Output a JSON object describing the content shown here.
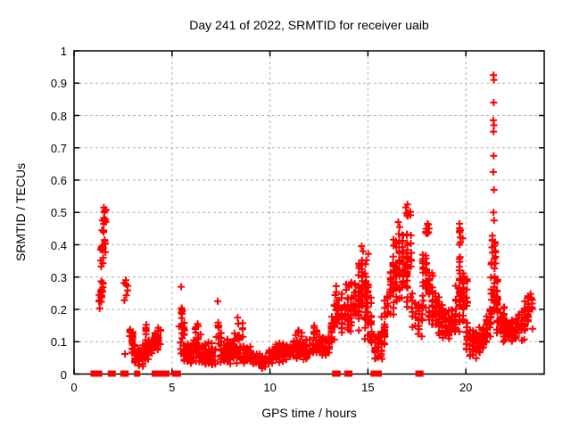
{
  "chart_data": {
    "type": "scatter",
    "title": "Day 241 of 2022, SRMTID for receiver uaib",
    "xlabel": "GPS time / hours",
    "ylabel": "SRMTID / TECUs",
    "xlim": [
      0,
      24
    ],
    "ylim": [
      0,
      1
    ],
    "xticks": {
      "values": [
        0,
        5,
        10,
        15,
        20
      ],
      "labels": [
        "0",
        "5",
        "10",
        "15",
        "20"
      ]
    },
    "yticks": {
      "values": [
        0,
        0.1,
        0.2,
        0.3,
        0.4,
        0.5,
        0.6,
        0.7,
        0.8,
        0.9,
        1
      ],
      "labels": [
        "0",
        "0.1",
        "0.2",
        "0.3",
        "0.4",
        "0.5",
        "0.6",
        "0.7",
        "0.8",
        "0.9",
        "1"
      ]
    },
    "grid": true,
    "legend": false,
    "marker": {
      "type": "plus",
      "size": 9
    },
    "series_name": "SRMTID",
    "cluster_bands_note": "each row: [hour_start, hour_end, n_points, y_min_at_start, y_max_at_start, y_min_at_end, y_max_at_end] - estimated envelope of dense plus-marker scatter",
    "clusters": [
      [
        1.3,
        1.48,
        22,
        0.17,
        0.3,
        0.22,
        0.33
      ],
      [
        1.38,
        1.58,
        16,
        0.3,
        0.42,
        0.34,
        0.47
      ],
      [
        1.44,
        1.62,
        14,
        0.42,
        0.5,
        0.44,
        0.52
      ],
      [
        2.58,
        2.72,
        7,
        0.22,
        0.31,
        0.22,
        0.31
      ],
      [
        2.85,
        3.1,
        25,
        0.08,
        0.16,
        0.04,
        0.12
      ],
      [
        3.1,
        3.5,
        45,
        0.02,
        0.1,
        0.02,
        0.09
      ],
      [
        3.5,
        3.8,
        35,
        0.02,
        0.1,
        0.04,
        0.12
      ],
      [
        3.62,
        3.75,
        5,
        0.12,
        0.17,
        0.12,
        0.17
      ],
      [
        3.8,
        4.15,
        30,
        0.04,
        0.11,
        0.06,
        0.13
      ],
      [
        4.15,
        4.42,
        25,
        0.06,
        0.17,
        0.07,
        0.14
      ],
      [
        5.38,
        5.62,
        18,
        0.1,
        0.27,
        0.08,
        0.18
      ],
      [
        5.45,
        5.95,
        40,
        0.03,
        0.1,
        0.03,
        0.1
      ],
      [
        5.95,
        6.55,
        55,
        0.03,
        0.11,
        0.03,
        0.11
      ],
      [
        6.2,
        6.45,
        8,
        0.1,
        0.16,
        0.1,
        0.16
      ],
      [
        6.55,
        7.2,
        60,
        0.02,
        0.1,
        0.02,
        0.1
      ],
      [
        7.25,
        7.5,
        14,
        0.08,
        0.23,
        0.06,
        0.16
      ],
      [
        7.5,
        8.15,
        60,
        0.03,
        0.11,
        0.03,
        0.11
      ],
      [
        8.2,
        8.6,
        12,
        0.09,
        0.17,
        0.09,
        0.17
      ],
      [
        8.15,
        9.0,
        75,
        0.03,
        0.11,
        0.02,
        0.09
      ],
      [
        9.0,
        9.6,
        55,
        0.02,
        0.08,
        0.015,
        0.06
      ],
      [
        9.6,
        10.3,
        55,
        0.015,
        0.06,
        0.03,
        0.09
      ],
      [
        10.3,
        11.2,
        85,
        0.03,
        0.1,
        0.03,
        0.1
      ],
      [
        11.3,
        11.6,
        10,
        0.08,
        0.15,
        0.08,
        0.15
      ],
      [
        11.2,
        12.2,
        90,
        0.04,
        0.11,
        0.04,
        0.11
      ],
      [
        12.25,
        12.55,
        10,
        0.09,
        0.16,
        0.09,
        0.16
      ],
      [
        12.2,
        13.0,
        75,
        0.05,
        0.12,
        0.05,
        0.12
      ],
      [
        13.0,
        13.3,
        30,
        0.07,
        0.15,
        0.1,
        0.22
      ],
      [
        13.3,
        13.5,
        12,
        0.14,
        0.27,
        0.14,
        0.27
      ],
      [
        13.5,
        14.3,
        60,
        0.1,
        0.25,
        0.12,
        0.28
      ],
      [
        13.9,
        14.15,
        8,
        0.24,
        0.31,
        0.24,
        0.31
      ],
      [
        14.35,
        14.9,
        55,
        0.12,
        0.3,
        0.15,
        0.36
      ],
      [
        14.55,
        14.85,
        8,
        0.3,
        0.375,
        0.3,
        0.375
      ],
      [
        14.85,
        15.15,
        35,
        0.08,
        0.37,
        0.08,
        0.3
      ],
      [
        15.2,
        15.7,
        35,
        0.03,
        0.15,
        0.02,
        0.12
      ],
      [
        15.7,
        16.3,
        55,
        0.04,
        0.2,
        0.15,
        0.38
      ],
      [
        16.3,
        16.75,
        50,
        0.18,
        0.45,
        0.2,
        0.45
      ],
      [
        16.8,
        17.2,
        45,
        0.2,
        0.47,
        0.2,
        0.47
      ],
      [
        16.95,
        17.15,
        6,
        0.47,
        0.53,
        0.47,
        0.53
      ],
      [
        17.25,
        17.75,
        28,
        0.1,
        0.28,
        0.1,
        0.22
      ],
      [
        17.8,
        18.3,
        60,
        0.15,
        0.44,
        0.15,
        0.4
      ],
      [
        17.95,
        18.2,
        6,
        0.42,
        0.47,
        0.42,
        0.47
      ],
      [
        18.3,
        18.8,
        55,
        0.12,
        0.3,
        0.11,
        0.24
      ],
      [
        18.8,
        19.45,
        70,
        0.1,
        0.22,
        0.11,
        0.2
      ],
      [
        19.5,
        20.05,
        65,
        0.12,
        0.38,
        0.1,
        0.33
      ],
      [
        19.55,
        19.85,
        8,
        0.38,
        0.47,
        0.38,
        0.47
      ],
      [
        20.05,
        20.7,
        60,
        0.05,
        0.18,
        0.04,
        0.15
      ],
      [
        20.7,
        21.25,
        55,
        0.05,
        0.16,
        0.1,
        0.22
      ],
      [
        21.3,
        21.6,
        40,
        0.15,
        0.4,
        0.14,
        0.34
      ],
      [
        21.35,
        21.5,
        12,
        0.33,
        0.46,
        0.33,
        0.46
      ],
      [
        21.6,
        22.1,
        50,
        0.1,
        0.26,
        0.09,
        0.2
      ],
      [
        22.0,
        22.55,
        55,
        0.09,
        0.18,
        0.09,
        0.18
      ],
      [
        22.55,
        23.0,
        35,
        0.1,
        0.2,
        0.1,
        0.22
      ],
      [
        23.0,
        23.38,
        30,
        0.11,
        0.25,
        0.13,
        0.26
      ]
    ],
    "outlier_points": [
      [
        1.52,
        0.515
      ],
      [
        1.56,
        0.505
      ],
      [
        2.6,
        0.062
      ],
      [
        5.47,
        0.27
      ],
      [
        7.33,
        0.225
      ],
      [
        8.35,
        0.175
      ],
      [
        13.38,
        0.272
      ],
      [
        14.68,
        0.395
      ],
      [
        14.75,
        0.38
      ],
      [
        15.02,
        0.372
      ],
      [
        16.55,
        0.47
      ],
      [
        16.62,
        0.455
      ],
      [
        17.02,
        0.525
      ],
      [
        17.05,
        0.5
      ],
      [
        17.0,
        0.49
      ],
      [
        18.05,
        0.465
      ],
      [
        18.12,
        0.45
      ],
      [
        19.68,
        0.465
      ],
      [
        19.72,
        0.445
      ],
      [
        21.41,
        0.925
      ],
      [
        21.43,
        0.91
      ],
      [
        21.42,
        0.84
      ],
      [
        21.4,
        0.785
      ],
      [
        21.43,
        0.77
      ],
      [
        21.41,
        0.75
      ],
      [
        21.42,
        0.675
      ],
      [
        21.4,
        0.625
      ],
      [
        21.43,
        0.57
      ],
      [
        21.41,
        0.5
      ],
      [
        21.44,
        0.475
      ],
      [
        23.3,
        0.248
      ],
      [
        23.34,
        0.235
      ]
    ],
    "zero_marker_hours": [
      1.0,
      1.08,
      1.28,
      1.88,
      1.97,
      2.52,
      2.63,
      3.22,
      4.12,
      4.28,
      4.45,
      4.58,
      4.72,
      5.15,
      5.3,
      13.33,
      13.45,
      13.95,
      14.05,
      15.3,
      15.42,
      15.55,
      17.58,
      17.68
    ]
  },
  "colors": {
    "marker": "#ff0000",
    "grid": "#b0b0b0",
    "axis": "#000000",
    "background": "#ffffff"
  }
}
